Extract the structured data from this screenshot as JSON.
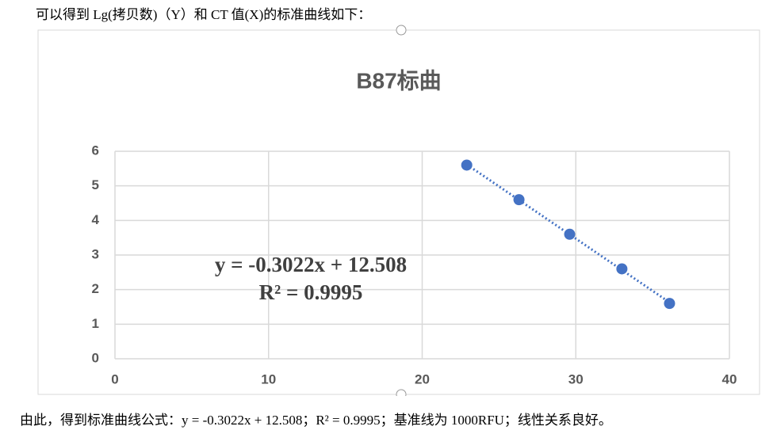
{
  "intro": "可以得到 Lg(拷贝数)（Y）和 CT 值(X)的标准曲线如下：",
  "chart_data": {
    "type": "scatter",
    "title": "B87标曲",
    "x": [
      22.9,
      26.3,
      29.6,
      33.0,
      36.1
    ],
    "values": [
      5.6,
      4.6,
      3.6,
      2.6,
      1.6
    ],
    "color": "#4472c4",
    "xlim": [
      0,
      40
    ],
    "xticks": [
      0,
      10,
      20,
      30,
      40
    ],
    "ylim": [
      0,
      6
    ],
    "yticks": [
      0,
      1,
      2,
      3,
      4,
      5,
      6
    ],
    "grid": true,
    "trendline": true,
    "annotations": [
      "y = -0.3022x + 12.508",
      "R² = 0.9995"
    ]
  },
  "conclusion": "由此，得到标准曲线公式：y = -0.3022x + 12.508；R² = 0.9995；基准线为 1000RFU；线性关系良好。"
}
